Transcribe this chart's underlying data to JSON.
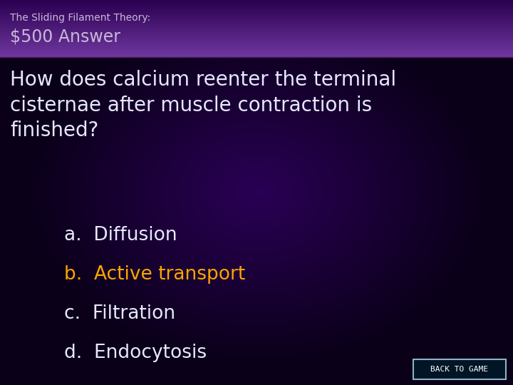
{
  "title_category": "The Sliding Filament Theory:",
  "title_answer": "$500 Answer",
  "question": "How does calcium reenter the terminal\ncisternae after muscle contraction is\nfinished?",
  "options": [
    {
      "label": "a.  Diffusion",
      "color": "#e8e8ff",
      "highlighted": false
    },
    {
      "label": "b.  Active transport",
      "color": "#FFA500",
      "highlighted": true
    },
    {
      "label": "c.  Filtration",
      "color": "#e8e8ff",
      "highlighted": false
    },
    {
      "label": "d.  Endocytosis",
      "color": "#e8e8ff",
      "highlighted": false
    }
  ],
  "header_top_color": "#2a0050",
  "header_bottom_color": "#7040a0",
  "header_text_color": "#c8b8d8",
  "bg_dark": "#0a0018",
  "bg_mid": "#2a0055",
  "question_color": "#e8e8ff",
  "back_button_text": "BACK TO GAME",
  "back_button_bg": "#001525",
  "back_button_border": "#90b0c8",
  "title_category_fontsize": 10,
  "title_answer_fontsize": 17,
  "question_fontsize": 20,
  "option_fontsize": 19
}
